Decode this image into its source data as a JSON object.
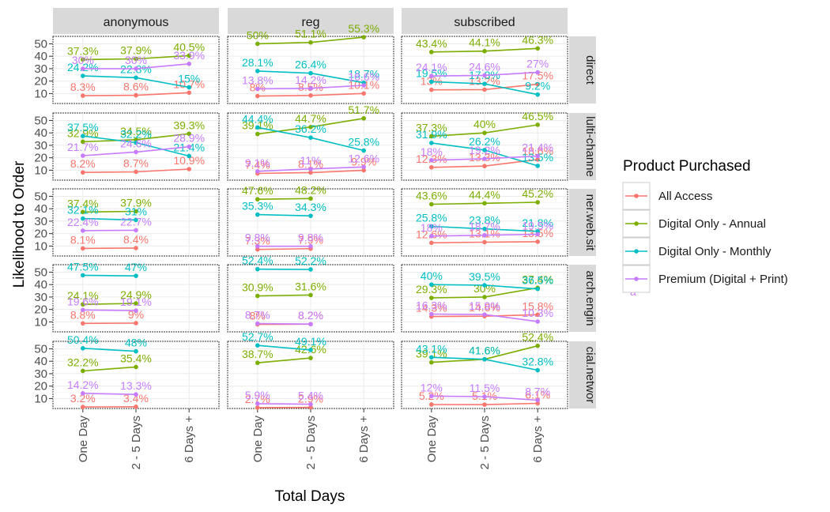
{
  "chart_data": {
    "type": "line",
    "xlabel": "Total Days",
    "ylabel": "Likelihood to Order",
    "categories": [
      "One Day",
      "2 - 5 Days",
      "6 Days +"
    ],
    "yticks": [
      10,
      20,
      30,
      40,
      50
    ],
    "ylim": [
      2,
      56
    ],
    "columns": [
      "anonymous",
      "reg",
      "subscribed"
    ],
    "rows": [
      "direct",
      "lulti-channe",
      "ner.web.sit",
      "arch.engin",
      "cial.networ"
    ],
    "grid": true,
    "legend": {
      "title": "Product Purchased",
      "position": "right",
      "entries": [
        "All Access",
        "Digital Only - Annual",
        "Digital Only - Monthly",
        "Premium (Digital + Print)"
      ],
      "stray_text": "a"
    },
    "colors": {
      "All Access": "#F8766D",
      "Digital Only - Annual": "#7CAE00",
      "Digital Only - Monthly": "#00BFC4",
      "Premium (Digital + Print)": "#C77CFF"
    },
    "panels": [
      {
        "row": "direct",
        "column": "anonymous",
        "series": [
          {
            "name": "All Access",
            "values": [
              8.3,
              8.6,
              10.7
            ],
            "labels": [
              "8.3%",
              "8.6%",
              "10.7%"
            ]
          },
          {
            "name": "Digital Only - Annual",
            "values": [
              37.3,
              37.9,
              40.5
            ],
            "labels": [
              "37.3%",
              "37.9%",
              "40.5%"
            ]
          },
          {
            "name": "Digital Only - Monthly",
            "values": [
              24.2,
              22.8,
              15
            ],
            "labels": [
              "24.2%",
              "22.8%",
              "15%"
            ]
          },
          {
            "name": "Premium (Digital + Print)",
            "values": [
              30,
              30,
              33.9
            ],
            "labels": [
              "30%",
              "30%",
              "33.9%"
            ]
          }
        ]
      },
      {
        "row": "direct",
        "column": "reg",
        "series": [
          {
            "name": "All Access",
            "values": [
              8,
              8.5,
              10.1
            ],
            "labels": [
              "8%",
              "8.5%",
              "10.1%"
            ]
          },
          {
            "name": "Digital Only - Annual",
            "values": [
              50,
              51.1,
              55.3
            ],
            "labels": [
              "50%",
              "51.1%",
              "55.3%"
            ]
          },
          {
            "name": "Digital Only - Monthly",
            "values": [
              28.1,
              26.4,
              18.7
            ],
            "labels": [
              "28.1%",
              "26.4%",
              "18.7%"
            ]
          },
          {
            "name": "Premium (Digital + Print)",
            "values": [
              13.8,
              14.2,
              16.6
            ],
            "labels": [
              "13.8%",
              "14.2%",
              "16.6%"
            ]
          }
        ]
      },
      {
        "row": "direct",
        "column": "subscribed",
        "series": [
          {
            "name": "All Access",
            "values": [
              13,
              13.2,
              17.5
            ],
            "labels": [
              "13%",
              "13.2%",
              "17.5%"
            ]
          },
          {
            "name": "Digital Only - Annual",
            "values": [
              43.4,
              44.1,
              46.3
            ],
            "labels": [
              "43.4%",
              "44.1%",
              "46.3%"
            ]
          },
          {
            "name": "Digital Only - Monthly",
            "values": [
              19.5,
              17.8,
              9.2
            ],
            "labels": [
              "19.5%",
              "17.8%",
              "9.2%"
            ]
          },
          {
            "name": "Premium (Digital + Print)",
            "values": [
              24.1,
              24.6,
              27
            ],
            "labels": [
              "24.1%",
              "24.6%",
              "27%"
            ]
          }
        ]
      },
      {
        "row": "lulti-channe",
        "column": "anonymous",
        "series": [
          {
            "name": "All Access",
            "values": [
              8.2,
              8.7,
              10.9
            ],
            "labels": [
              "8.2%",
              "8.7%",
              "10.9%"
            ]
          },
          {
            "name": "Digital Only - Annual",
            "values": [
              32.9,
              34.5,
              39.3
            ],
            "labels": [
              "32.9%",
              "34.5%",
              "39.3%"
            ]
          },
          {
            "name": "Digital Only - Monthly",
            "values": [
              37.5,
              32.2,
              21.4
            ],
            "labels": [
              "37.5%",
              "32.2%",
              "21.4%"
            ]
          },
          {
            "name": "Premium (Digital + Print)",
            "values": [
              21.7,
              24.6,
              28.9
            ],
            "labels": [
              "21.7%",
              "24.6%",
              "28.9%"
            ]
          }
        ]
      },
      {
        "row": "lulti-channe",
        "column": "reg",
        "series": [
          {
            "name": "All Access",
            "values": [
              7.4,
              8.1,
              9.9
            ],
            "labels": [
              "7.4%",
              "8.1%",
              "9.9%"
            ]
          },
          {
            "name": "Digital Only - Annual",
            "values": [
              39.1,
              44.7,
              51.7
            ],
            "labels": [
              "39.1%",
              "44.7%",
              "51.7%"
            ]
          },
          {
            "name": "Digital Only - Monthly",
            "values": [
              44.4,
              36.2,
              25.8
            ],
            "labels": [
              "44.4%",
              "36.2%",
              "25.8%"
            ]
          },
          {
            "name": "Premium (Digital + Print)",
            "values": [
              9.1,
              11,
              12.6
            ],
            "labels": [
              "9.1%",
              "11%",
              "12.6%"
            ]
          }
        ]
      },
      {
        "row": "lulti-channe",
        "column": "subscribed",
        "series": [
          {
            "name": "All Access",
            "values": [
              12.3,
              13.3,
              18.6
            ],
            "labels": [
              "12.3%",
              "13.3%",
              "18.6%"
            ]
          },
          {
            "name": "Digital Only - Annual",
            "values": [
              37.3,
              40,
              46.5
            ],
            "labels": [
              "37.3%",
              "40%",
              "46.5%"
            ]
          },
          {
            "name": "Digital Only - Monthly",
            "values": [
              31.9,
              26.2,
              13.5
            ],
            "labels": [
              "31.9%",
              "26.2%",
              "13.5%"
            ]
          },
          {
            "name": "Premium (Digital + Print)",
            "values": [
              18,
              19.2,
              21.4
            ],
            "labels": [
              "18%",
              "19.2%",
              "21.4%"
            ]
          }
        ]
      },
      {
        "row": "ner.web.sit",
        "column": "anonymous",
        "series": [
          {
            "name": "All Access",
            "values": [
              8.1,
              8.4
            ],
            "labels": [
              "8.1%",
              "8.4%"
            ]
          },
          {
            "name": "Digital Only - Annual",
            "values": [
              37.4,
              37.9
            ],
            "labels": [
              "37.4%",
              "37.9%"
            ]
          },
          {
            "name": "Digital Only - Monthly",
            "values": [
              32.1,
              31
            ],
            "labels": [
              "32.1%",
              "31%"
            ]
          },
          {
            "name": "Premium (Digital + Print)",
            "values": [
              22.4,
              22.7
            ],
            "labels": [
              "22.4%",
              "22.7%"
            ]
          }
        ]
      },
      {
        "row": "ner.web.sit",
        "column": "reg",
        "series": [
          {
            "name": "All Access",
            "values": [
              7.3,
              7.9
            ],
            "labels": [
              "7.3%",
              "7.9%"
            ]
          },
          {
            "name": "Digital Only - Annual",
            "values": [
              47.6,
              48.2
            ],
            "labels": [
              "47.6%",
              "48.2%"
            ]
          },
          {
            "name": "Digital Only - Monthly",
            "values": [
              35.3,
              34.3
            ],
            "labels": [
              "35.3%",
              "34.3%"
            ]
          },
          {
            "name": "Premium (Digital + Print)",
            "values": [
              9.8,
              9.8
            ],
            "labels": [
              "9.8%",
              "9.8%"
            ]
          }
        ]
      },
      {
        "row": "ner.web.sit",
        "column": "subscribed",
        "series": [
          {
            "name": "All Access",
            "values": [
              12.6,
              13.1,
              13.5
            ],
            "labels": [
              "12.6%",
              "13.1%",
              "13.5%"
            ]
          },
          {
            "name": "Digital Only - Annual",
            "values": [
              43.6,
              44.4,
              45.2
            ],
            "labels": [
              "43.6%",
              "44.4%",
              "45.2%"
            ]
          },
          {
            "name": "Digital Only - Monthly",
            "values": [
              25.8,
              23.8,
              21.8
            ],
            "labels": [
              "25.8%",
              "23.8%",
              "21.8%"
            ]
          },
          {
            "name": "Premium (Digital + Print)",
            "values": [
              18,
              18.7,
              19.5
            ],
            "labels": [
              "18%",
              "18.7%",
              "19.5%"
            ]
          }
        ]
      },
      {
        "row": "arch.engin",
        "column": "anonymous",
        "series": [
          {
            "name": "All Access",
            "values": [
              8.8,
              9
            ],
            "labels": [
              "8.8%",
              "9%"
            ]
          },
          {
            "name": "Digital Only - Annual",
            "values": [
              24.1,
              24.9
            ],
            "labels": [
              "24.1%",
              "24.9%"
            ]
          },
          {
            "name": "Digital Only - Monthly",
            "values": [
              47.5,
              47
            ],
            "labels": [
              "47.5%",
              "47%"
            ]
          },
          {
            "name": "Premium (Digital + Print)",
            "values": [
              19.6,
              19.1
            ],
            "labels": [
              "19.6%",
              "19.1%"
            ]
          }
        ]
      },
      {
        "row": "arch.engin",
        "column": "reg",
        "series": [
          {
            "name": "All Access",
            "values": [
              8,
              8.2
            ],
            "labels": [
              "8%",
              "8.2%"
            ]
          },
          {
            "name": "Digital Only - Annual",
            "values": [
              30.9,
              31.6
            ],
            "labels": [
              "30.9%",
              "31.6%"
            ]
          },
          {
            "name": "Digital Only - Monthly",
            "values": [
              52.4,
              52.2
            ],
            "labels": [
              "52.4%",
              "52.2%"
            ]
          },
          {
            "name": "Premium (Digital + Print)",
            "values": [
              8.7,
              8.2
            ],
            "labels": [
              "8.7%",
              "8.2%"
            ]
          }
        ]
      },
      {
        "row": "arch.engin",
        "column": "subscribed",
        "series": [
          {
            "name": "All Access",
            "values": [
              14.3,
              14.6,
              15.8
            ],
            "labels": [
              "14.3%",
              "14.6%",
              "15.8%"
            ]
          },
          {
            "name": "Digital Only - Annual",
            "values": [
              29.3,
              30,
              37.4
            ],
            "labels": [
              "29.3%",
              "30%",
              "37.4%"
            ]
          },
          {
            "name": "Digital Only - Monthly",
            "values": [
              40,
              39.5,
              36.5
            ],
            "labels": [
              "40%",
              "39.5%",
              "36.5%"
            ]
          },
          {
            "name": "Premium (Digital + Print)",
            "values": [
              16.3,
              15.9,
              10.3
            ],
            "labels": [
              "16.3%",
              "15.9%",
              "10.3%"
            ]
          }
        ]
      },
      {
        "row": "cial.networ",
        "column": "anonymous",
        "series": [
          {
            "name": "All Access",
            "values": [
              3.2,
              3.4
            ],
            "labels": [
              "3.2%",
              "3.4%"
            ]
          },
          {
            "name": "Digital Only - Annual",
            "values": [
              32.2,
              35.4
            ],
            "labels": [
              "32.2%",
              "35.4%"
            ]
          },
          {
            "name": "Digital Only - Monthly",
            "values": [
              50.4,
              48
            ],
            "labels": [
              "50.4%",
              "48%"
            ]
          },
          {
            "name": "Premium (Digital + Print)",
            "values": [
              14.2,
              13.3
            ],
            "labels": [
              "14.2%",
              "13.3%"
            ]
          }
        ]
      },
      {
        "row": "cial.networ",
        "column": "reg",
        "series": [
          {
            "name": "All Access",
            "values": [
              2.7,
              2.9
            ],
            "labels": [
              "2.7%",
              "2.9%"
            ]
          },
          {
            "name": "Digital Only - Annual",
            "values": [
              38.7,
              42.6
            ],
            "labels": [
              "38.7%",
              "42.6%"
            ]
          },
          {
            "name": "Digital Only - Monthly",
            "values": [
              52.7,
              49.1
            ],
            "labels": [
              "52.7%",
              "49.1%"
            ]
          },
          {
            "name": "Premium (Digital + Print)",
            "values": [
              5.9,
              5.4
            ],
            "labels": [
              "5.9%",
              "5.4%"
            ]
          }
        ]
      },
      {
        "row": "cial.networ",
        "column": "subscribed",
        "series": [
          {
            "name": "All Access",
            "values": [
              5.2,
              5.1,
              6.1
            ],
            "labels": [
              "5.2%",
              "5.1%",
              "6.1%"
            ]
          },
          {
            "name": "Digital Only - Annual",
            "values": [
              39.1,
              41.6,
              52.4
            ],
            "labels": [
              "39.1%",
              "41.6%",
              "52.4%"
            ]
          },
          {
            "name": "Digital Only - Monthly",
            "values": [
              43.1,
              41.6,
              32.8
            ],
            "labels": [
              "43.1%",
              "41.6%",
              "32.8%"
            ]
          },
          {
            "name": "Premium (Digital + Print)",
            "values": [
              12,
              11.5,
              8.7
            ],
            "labels": [
              "12%",
              "11.5%",
              "8.7%"
            ]
          }
        ]
      }
    ]
  }
}
